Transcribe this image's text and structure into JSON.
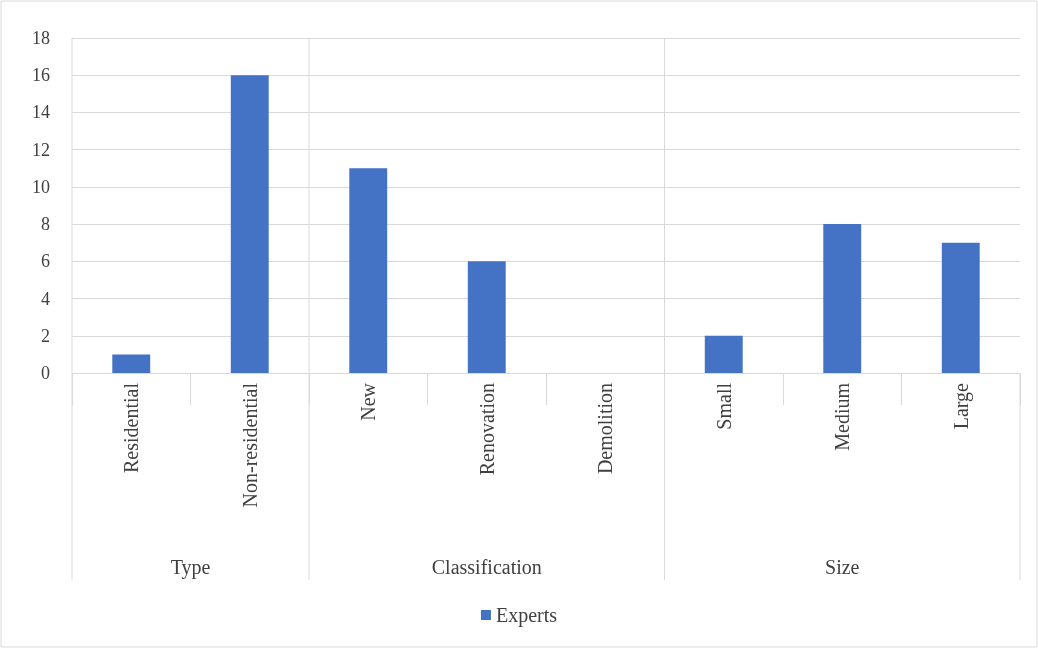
{
  "chart_data": {
    "type": "bar",
    "categories": [
      "Residential",
      "Non-residential",
      "New",
      "Renovation",
      "Demolition",
      "Small",
      "Medium",
      "Large"
    ],
    "series": [
      {
        "name": "Experts",
        "color": "#4472c4",
        "values": [
          1,
          16,
          11,
          6,
          0,
          2,
          8,
          7
        ]
      }
    ],
    "ylim": [
      0,
      18
    ],
    "yticks": [
      0,
      2,
      4,
      6,
      8,
      10,
      12,
      14,
      16,
      18
    ],
    "grid": "y",
    "legend": "bottom",
    "annotations": [
      "Type",
      "Classification",
      "Size"
    ]
  }
}
